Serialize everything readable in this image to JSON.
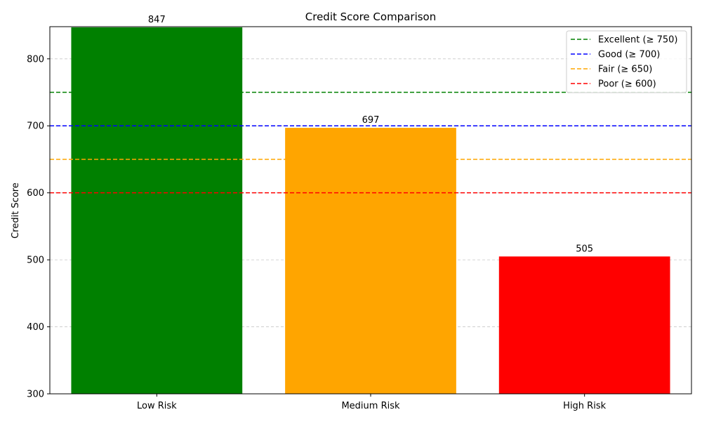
{
  "chart_data": {
    "type": "bar",
    "title": "Credit Score Comparison",
    "xlabel": "",
    "ylabel": "Credit Score",
    "categories": [
      "Low Risk",
      "Medium Risk",
      "High Risk"
    ],
    "values": [
      847,
      697,
      505
    ],
    "bar_colors": [
      "#008000",
      "#FFA500",
      "#FF0000"
    ],
    "data_labels": [
      "847",
      "697",
      "505"
    ],
    "ylim": [
      300,
      848
    ],
    "yticks": [
      300,
      400,
      500,
      600,
      700,
      800
    ],
    "ytick_labels": [
      "300",
      "400",
      "500",
      "600",
      "700",
      "800"
    ],
    "grid": "y-dashed",
    "legend_position": "top-right",
    "thresholds": [
      {
        "label": "Excellent (≥ 750)",
        "value": 750,
        "color": "#008000"
      },
      {
        "label": "Good (≥ 700)",
        "value": 700,
        "color": "#0000FF"
      },
      {
        "label": "Fair (≥ 650)",
        "value": 650,
        "color": "#FFA500"
      },
      {
        "label": "Poor (≥ 600)",
        "value": 600,
        "color": "#FF0000"
      }
    ]
  }
}
